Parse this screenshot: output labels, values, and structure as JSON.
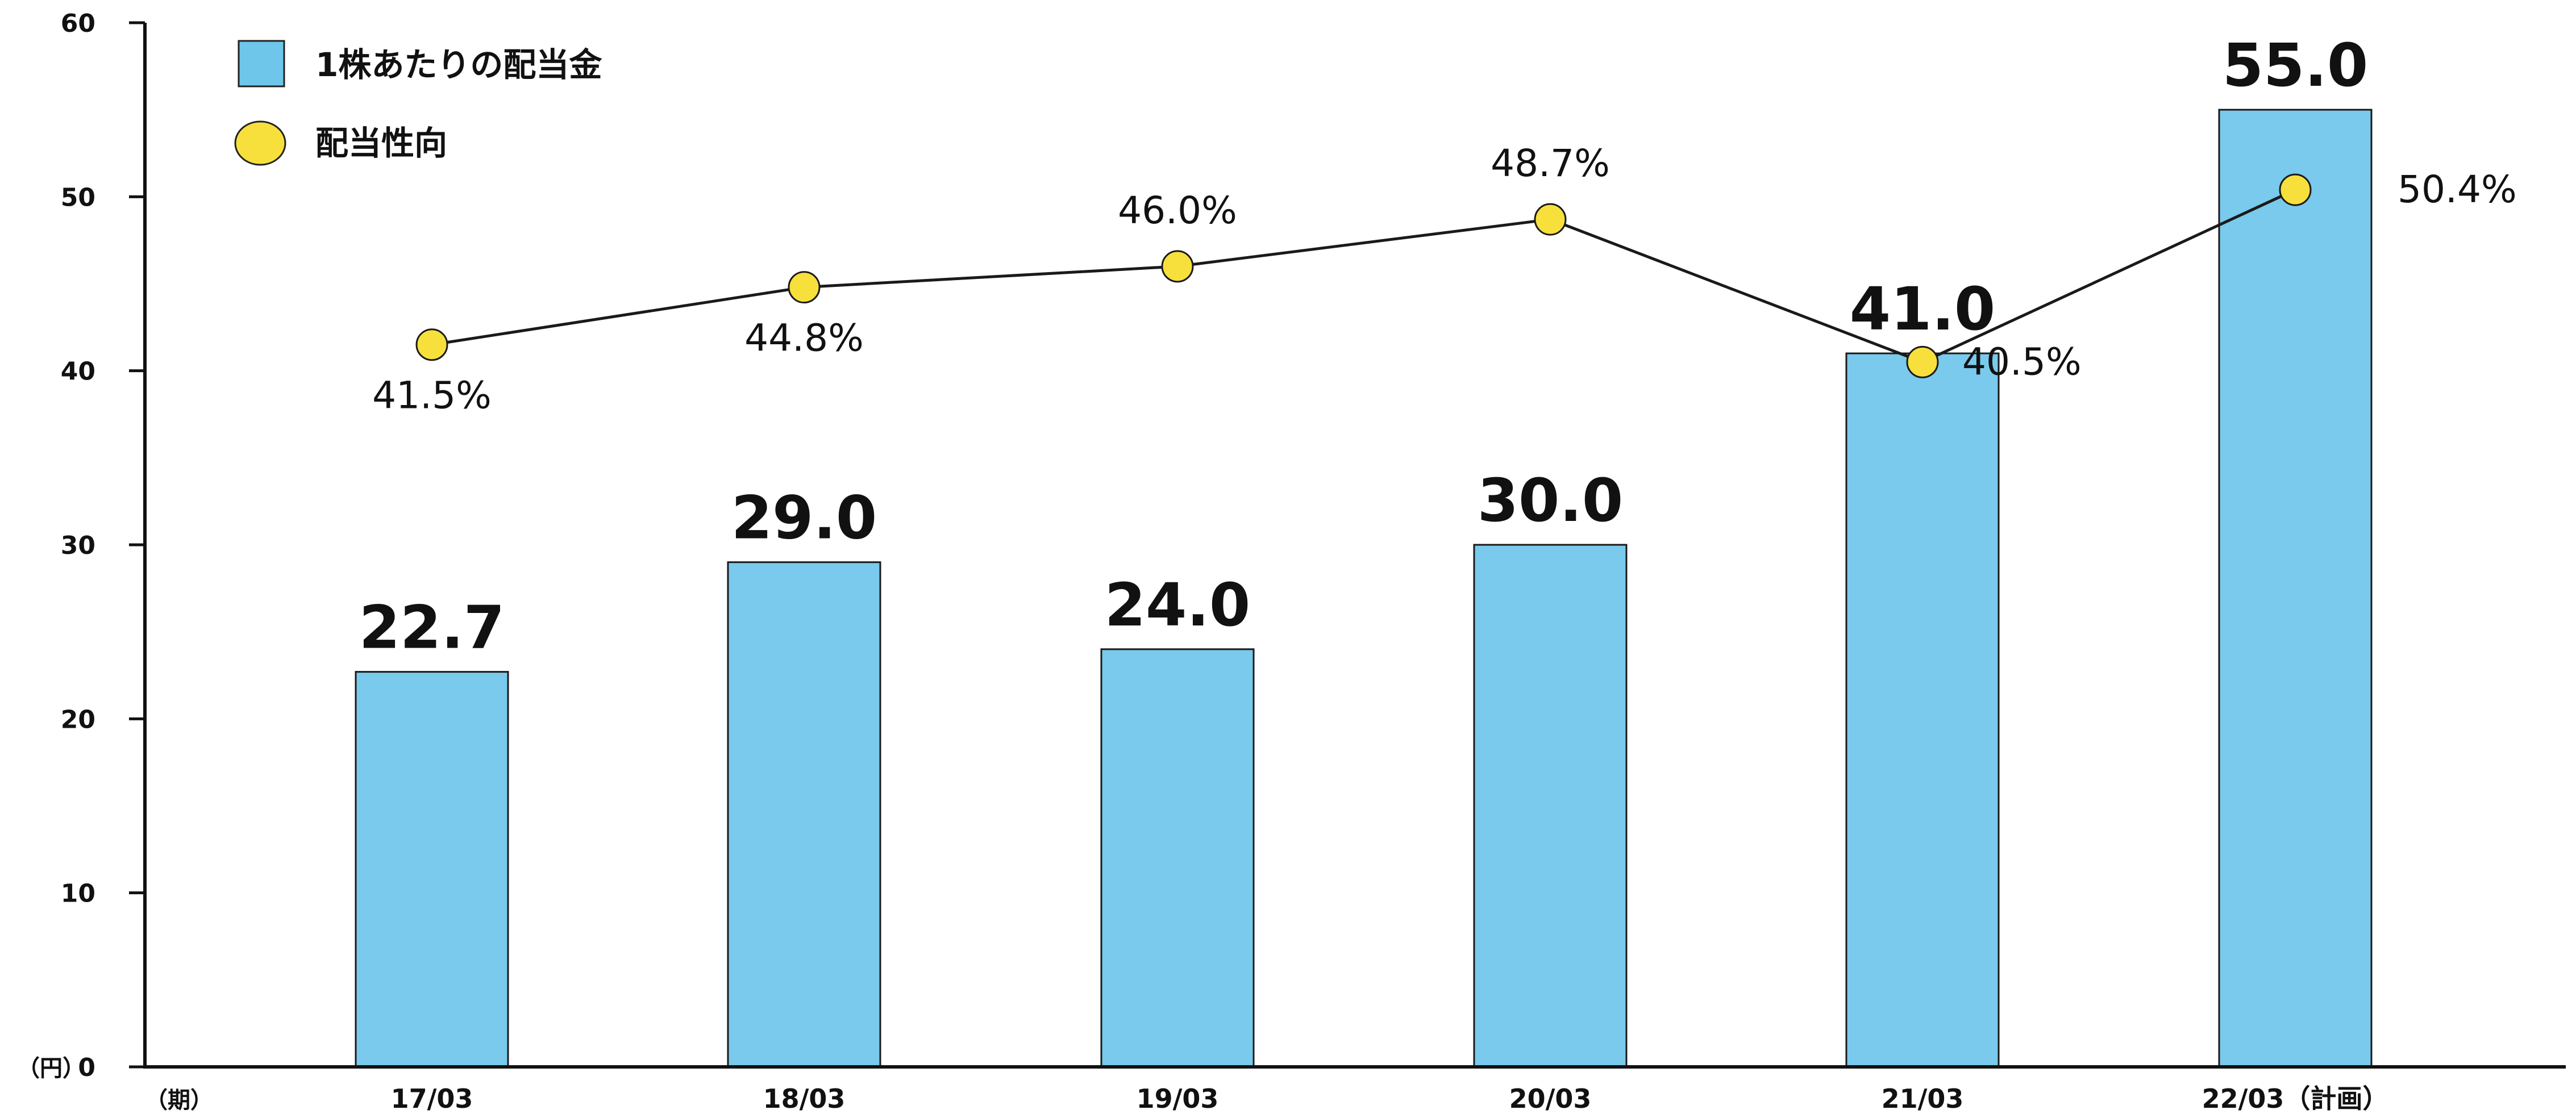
{
  "chart_data": {
    "type": "bar",
    "categories": [
      "17/03",
      "18/03",
      "19/03",
      "20/03",
      "21/03",
      "22/03（計画）"
    ],
    "series": [
      {
        "name": "1株あたりの配当金",
        "type": "bar",
        "values": [
          22.7,
          29.0,
          24.0,
          30.0,
          41.0,
          55.0
        ],
        "value_labels": [
          "22.7",
          "29.0",
          "24.0",
          "30.0",
          "41.0",
          "55.0"
        ],
        "color": "#6ec6ea"
      },
      {
        "name": "配当性向",
        "type": "line",
        "values": [
          41.5,
          44.8,
          46.0,
          48.7,
          40.5,
          50.4
        ],
        "value_labels": [
          "41.5%",
          "44.8%",
          "46.0%",
          "48.7%",
          "40.5%",
          "50.4%"
        ],
        "color": "#f7e03c"
      }
    ],
    "ylim": [
      0,
      60
    ],
    "yticks": [
      0,
      10,
      20,
      30,
      40,
      50,
      60
    ],
    "y_unit_label": "（円）",
    "x_unit_label": "（期）",
    "legend_position": "top-left",
    "grid": false
  }
}
